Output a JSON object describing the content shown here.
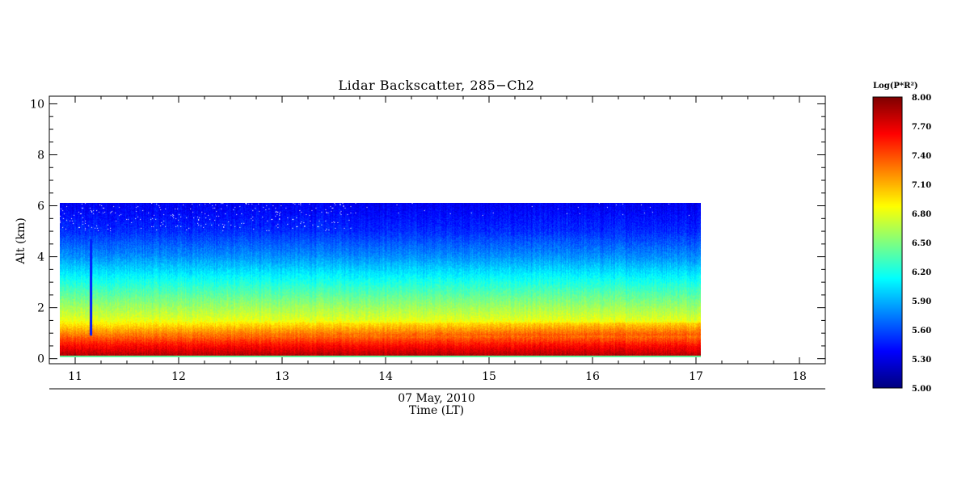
{
  "chart_data": {
    "type": "heatmap",
    "title": "Lidar Backscatter, 285−Ch2",
    "xlabel_date": "07 May, 2010",
    "xlabel": "Time (LT)",
    "ylabel": "Alt (km)",
    "xlim": [
      10.75,
      18.25
    ],
    "ylim": [
      -0.2,
      10.3
    ],
    "x_ticks": [
      11,
      12,
      13,
      14,
      15,
      16,
      17,
      18
    ],
    "y_ticks": [
      0,
      2,
      4,
      6,
      8,
      10
    ],
    "data_extent": {
      "time": [
        10.85,
        17.05
      ],
      "alt": [
        0.05,
        6.1
      ]
    },
    "colorbar": {
      "label": "Log(P*R²)",
      "range": [
        5.0,
        8.0
      ],
      "ticks": [
        "8.00",
        "7.70",
        "7.40",
        "7.10",
        "6.80",
        "6.50",
        "6.20",
        "5.90",
        "5.60",
        "5.30",
        "5.00"
      ],
      "colormap": "jet"
    },
    "profile_log_pr2": [
      {
        "alt": 0.1,
        "value": 7.85
      },
      {
        "alt": 0.5,
        "value": 7.6
      },
      {
        "alt": 1.0,
        "value": 7.2
      },
      {
        "alt": 1.5,
        "value": 6.8
      },
      {
        "alt": 2.0,
        "value": 6.6
      },
      {
        "alt": 3.0,
        "value": 6.2
      },
      {
        "alt": 4.0,
        "value": 5.8
      },
      {
        "alt": 5.0,
        "value": 5.5
      },
      {
        "alt": 6.0,
        "value": 5.35
      }
    ],
    "boundary_layer_top_km": 1.0,
    "dropout": {
      "time": 11.15,
      "alt_range": [
        0.9,
        4.7
      ]
    }
  }
}
